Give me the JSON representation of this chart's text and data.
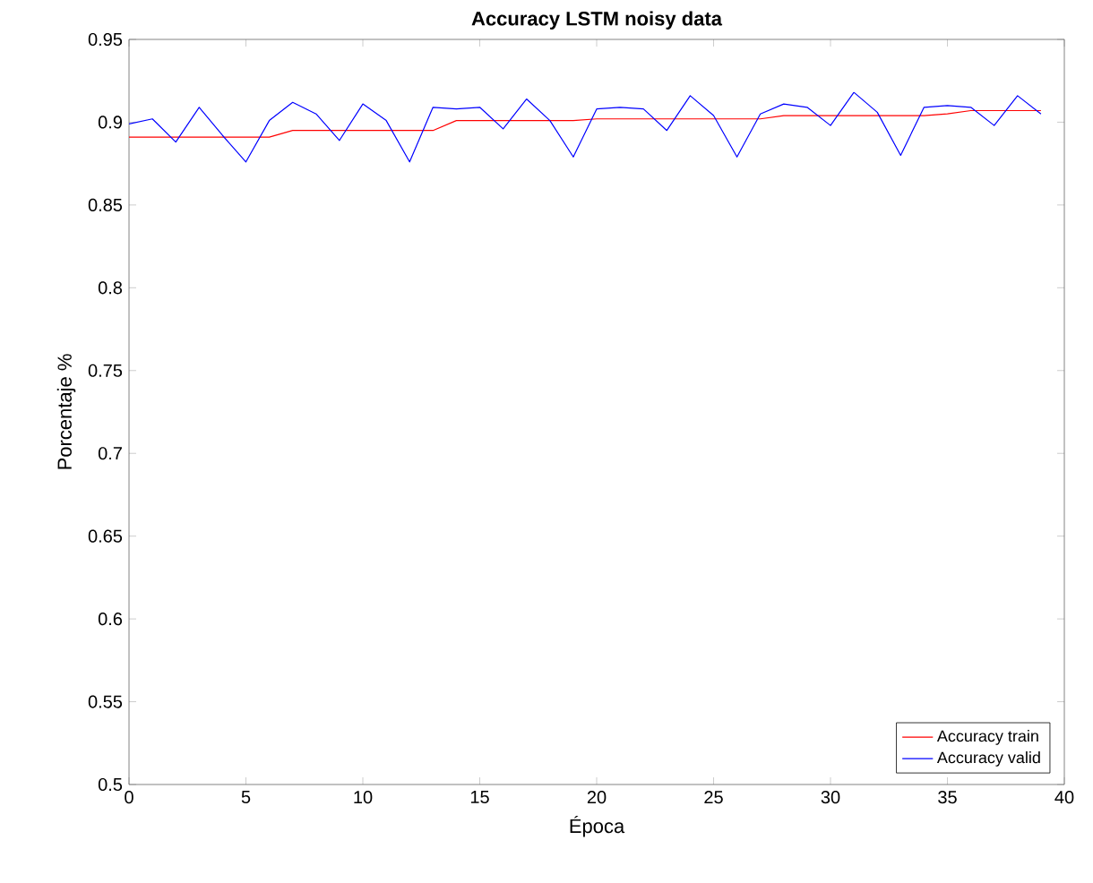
{
  "chart_data": {
    "type": "line",
    "title": "Accuracy LSTM noisy data",
    "xlabel": "Época",
    "ylabel": "Porcentaje %",
    "x": [
      0,
      1,
      2,
      3,
      4,
      5,
      6,
      7,
      8,
      9,
      10,
      11,
      12,
      13,
      14,
      15,
      16,
      17,
      18,
      19,
      20,
      21,
      22,
      23,
      24,
      25,
      26,
      27,
      28,
      29,
      30,
      31,
      32,
      33,
      34,
      35,
      36,
      37,
      38,
      39
    ],
    "series": [
      {
        "name": "Accuracy train",
        "color": "#ff0000",
        "values": [
          0.891,
          0.891,
          0.891,
          0.891,
          0.891,
          0.891,
          0.891,
          0.895,
          0.895,
          0.895,
          0.895,
          0.895,
          0.895,
          0.895,
          0.901,
          0.901,
          0.901,
          0.901,
          0.901,
          0.901,
          0.902,
          0.902,
          0.902,
          0.902,
          0.902,
          0.902,
          0.902,
          0.902,
          0.904,
          0.904,
          0.904,
          0.904,
          0.904,
          0.904,
          0.904,
          0.905,
          0.907,
          0.907,
          0.907,
          0.907
        ]
      },
      {
        "name": "Accuracy valid",
        "color": "#0000ff",
        "values": [
          0.899,
          0.902,
          0.888,
          0.909,
          0.892,
          0.876,
          0.901,
          0.912,
          0.905,
          0.889,
          0.911,
          0.901,
          0.876,
          0.909,
          0.908,
          0.909,
          0.896,
          0.914,
          0.901,
          0.879,
          0.908,
          0.909,
          0.908,
          0.895,
          0.916,
          0.904,
          0.879,
          0.905,
          0.911,
          0.909,
          0.898,
          0.918,
          0.906,
          0.88,
          0.909,
          0.91,
          0.909,
          0.898,
          0.916,
          0.905
        ]
      }
    ],
    "xlim": [
      0,
      40
    ],
    "xticks": [
      0,
      5,
      10,
      15,
      20,
      25,
      30,
      35,
      40
    ],
    "ylim": [
      0.5,
      0.95
    ],
    "yticks": [
      {
        "value": 0.5,
        "label": "0.5"
      },
      {
        "value": 0.55,
        "label": "0.55"
      },
      {
        "value": 0.6,
        "label": "0.6"
      },
      {
        "value": 0.65,
        "label": "0.65"
      },
      {
        "value": 0.7,
        "label": "0.7"
      },
      {
        "value": 0.75,
        "label": "0.75"
      },
      {
        "value": 0.8,
        "label": "0.8"
      },
      {
        "value": 0.85,
        "label": "0.85"
      },
      {
        "value": 0.9,
        "label": "0.9"
      },
      {
        "value": 0.95,
        "label": "0.95"
      }
    ],
    "legend": "bottom right",
    "grid": false,
    "marker": "none",
    "line_style": "solid"
  }
}
